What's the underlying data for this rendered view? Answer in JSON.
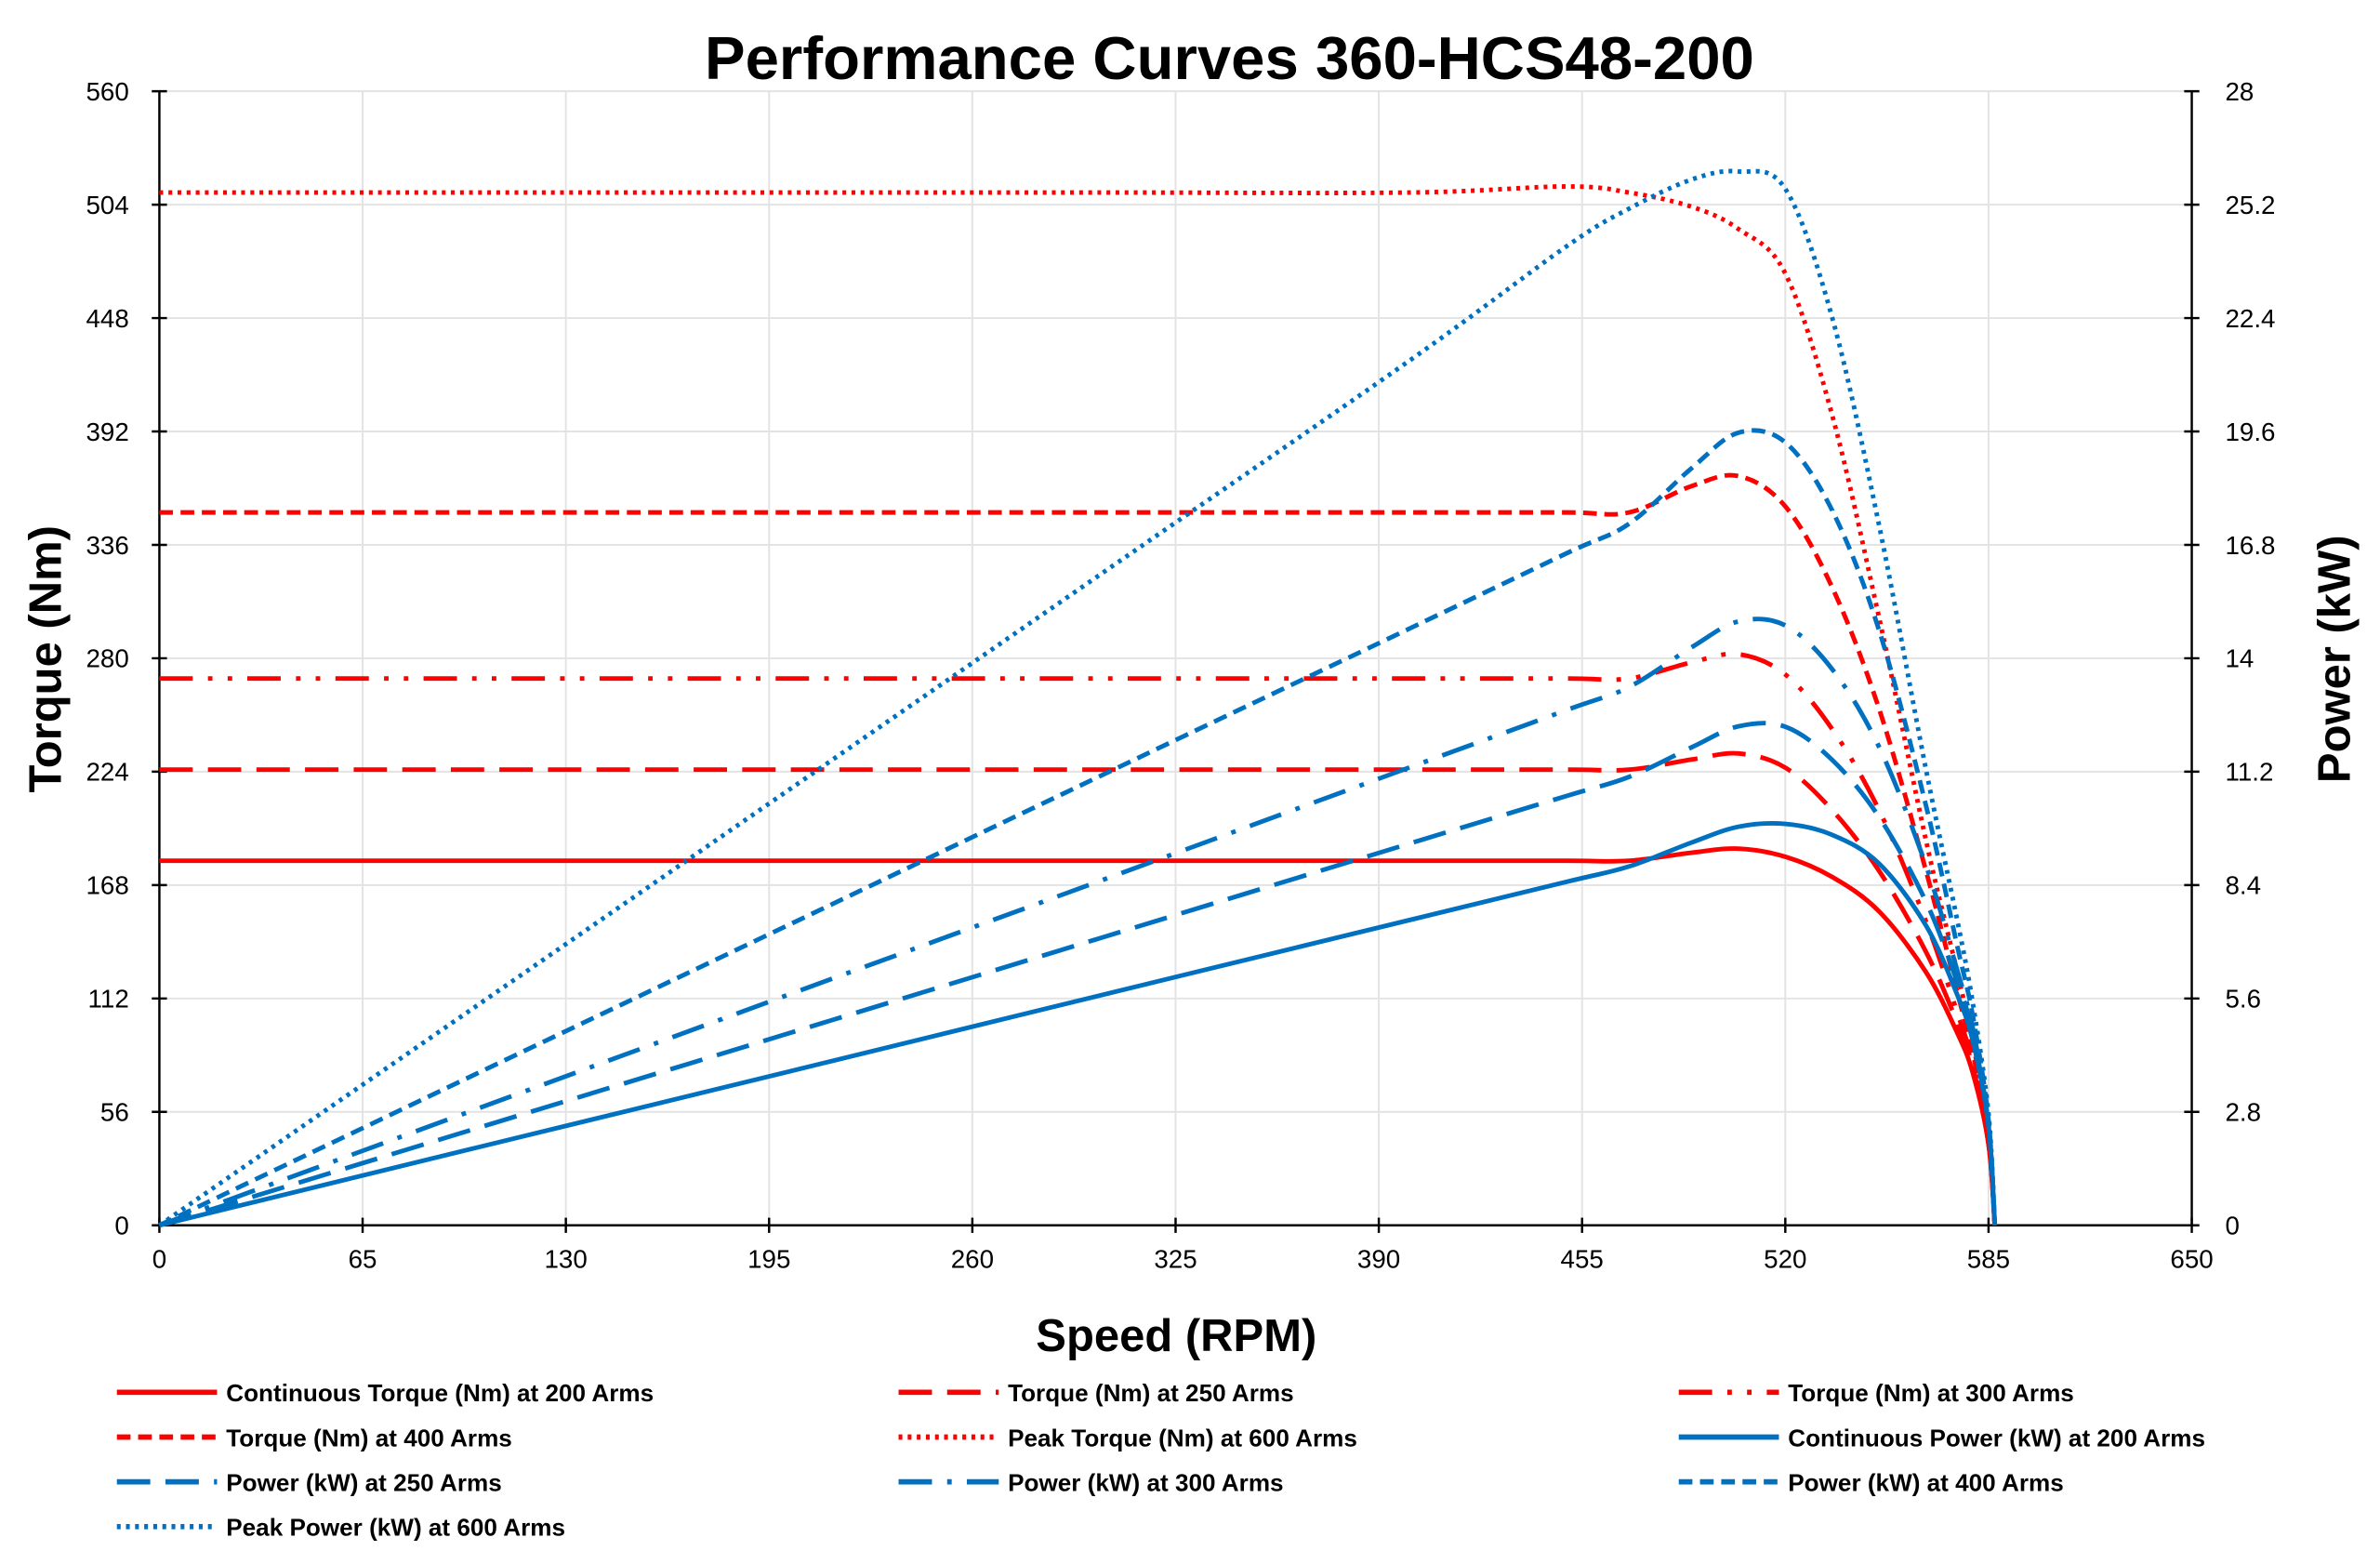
{
  "chart_data": {
    "type": "line",
    "title": "Performance Curves 360-HCS48-200",
    "xlabel": "Speed (RPM)",
    "ylabel": "Torque (Nm)",
    "y2label": "Power (kW)",
    "xlim": [
      0,
      650
    ],
    "ylim": [
      0,
      560
    ],
    "y2lim": [
      0,
      28
    ],
    "xticks": [
      0,
      65,
      130,
      195,
      260,
      325,
      390,
      455,
      520,
      585,
      650
    ],
    "yticks": [
      0,
      56,
      112,
      168,
      224,
      280,
      336,
      392,
      448,
      504,
      560
    ],
    "y2ticks": [
      "0",
      "2.8",
      "5.6",
      "8.4",
      "11.2",
      "14",
      "16.8",
      "19.6",
      "22.4",
      "25.2",
      "28"
    ],
    "grid": true,
    "legend_position": "bottom",
    "x": [
      0,
      100,
      200,
      300,
      400,
      450,
      470,
      490,
      505,
      520,
      535,
      550,
      565,
      575,
      580,
      585,
      587
    ],
    "series": [
      {
        "name": "Continuous Torque (Nm) at 200 Arms",
        "axis": "left",
        "color": "#ff0000",
        "dash": "solid",
        "values": [
          180,
          180,
          180,
          180,
          180,
          180,
          180,
          184,
          186,
          182,
          172,
          155,
          125,
          95,
          75,
          40,
          0
        ]
      },
      {
        "name": "Torque (Nm) at 250 Arms",
        "axis": "left",
        "color": "#ff0000",
        "dash": "longdash",
        "values": [
          225,
          225,
          225,
          225,
          225,
          225,
          225,
          230,
          233,
          226,
          205,
          175,
          135,
          100,
          78,
          40,
          0
        ]
      },
      {
        "name": "Torque (Nm) at 300 Arms",
        "axis": "left",
        "color": "#ff0000",
        "dash": "longdashdotdot",
        "values": [
          270,
          270,
          270,
          270,
          270,
          270,
          270,
          278,
          282,
          272,
          245,
          205,
          150,
          105,
          80,
          40,
          0
        ]
      },
      {
        "name": "Torque (Nm) at 400 Arms",
        "axis": "left",
        "color": "#ff0000",
        "dash": "dash",
        "values": [
          352,
          352,
          352,
          352,
          352,
          352,
          352,
          365,
          370,
          355,
          315,
          255,
          175,
          115,
          85,
          42,
          0
        ]
      },
      {
        "name": "Peak Torque (Nm) at 600 Arms",
        "axis": "left",
        "color": "#ff0000",
        "dash": "dot",
        "values": [
          510,
          510,
          510,
          510,
          510,
          513,
          510,
          503,
          492,
          470,
          400,
          300,
          190,
          125,
          90,
          45,
          0
        ]
      },
      {
        "name": "Continuous Power (kW) at 200 Arms",
        "axis": "right",
        "color": "#0070c0",
        "dash": "solid",
        "values": [
          0,
          1.89,
          3.77,
          5.66,
          7.54,
          8.48,
          8.86,
          9.45,
          9.84,
          9.91,
          9.64,
          8.93,
          7.4,
          5.69,
          4.54,
          2.45,
          0
        ]
      },
      {
        "name": "Power (kW) at 250 Arms",
        "axis": "right",
        "color": "#0070c0",
        "dash": "longdash",
        "values": [
          0,
          2.36,
          4.71,
          7.07,
          9.43,
          10.6,
          11.07,
          11.8,
          12.32,
          12.31,
          11.49,
          10.08,
          7.99,
          6.0,
          4.74,
          2.45,
          0
        ]
      },
      {
        "name": "Power (kW) at 300 Arms",
        "axis": "right",
        "color": "#0070c0",
        "dash": "longdashdot",
        "values": [
          0,
          2.83,
          5.66,
          8.48,
          11.31,
          12.72,
          13.29,
          14.27,
          14.91,
          14.81,
          13.73,
          11.81,
          8.88,
          6.29,
          4.86,
          2.45,
          0
        ]
      },
      {
        "name": "Power (kW) at 400 Arms",
        "axis": "right",
        "color": "#0070c0",
        "dash": "dash",
        "values": [
          0,
          3.69,
          7.37,
          11.06,
          14.74,
          16.59,
          17.32,
          18.69,
          19.57,
          19.33,
          17.65,
          14.69,
          10.36,
          6.89,
          5.16,
          2.59,
          0
        ]
      },
      {
        "name": "Peak Power (kW) at 600 Arms",
        "axis": "right",
        "color": "#0070c0",
        "dash": "dot",
        "values": [
          0,
          5.34,
          10.68,
          16.02,
          21.36,
          24.17,
          25.1,
          25.82,
          26.02,
          25.59,
          22.41,
          17.28,
          11.25,
          7.53,
          5.47,
          2.75,
          0
        ]
      }
    ]
  }
}
